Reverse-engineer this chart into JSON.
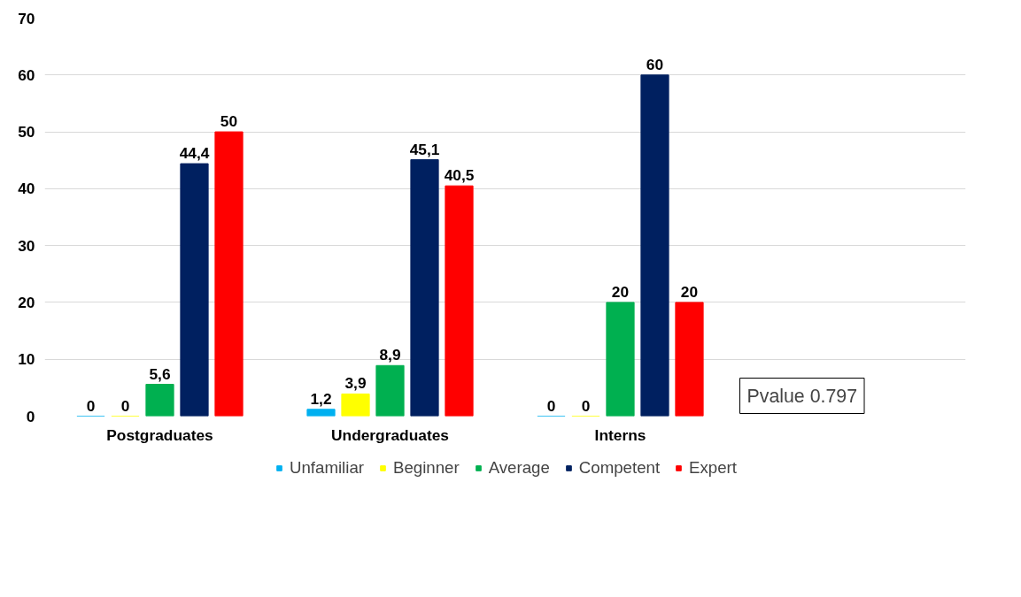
{
  "chart_data": {
    "type": "bar",
    "categories": [
      "Postgraduates",
      "Undergraduates",
      "Interns",
      null
    ],
    "series": [
      {
        "name": "Unfamiliar",
        "color": "#00b0f0",
        "values": [
          0,
          1.2,
          0,
          null
        ],
        "value_labels": [
          "0",
          "1,2",
          "0",
          null
        ]
      },
      {
        "name": "Beginner",
        "color": "#ffff00",
        "values": [
          0,
          3.9,
          0,
          null
        ],
        "value_labels": [
          "0",
          "3,9",
          "0",
          null
        ]
      },
      {
        "name": "Average",
        "color": "#00b050",
        "values": [
          5.6,
          8.9,
          20,
          null
        ],
        "value_labels": [
          "5,6",
          "8,9",
          "20",
          null
        ]
      },
      {
        "name": "Competent",
        "color": "#002060",
        "values": [
          44.4,
          45.1,
          60,
          null
        ],
        "value_labels": [
          "44,4",
          "45,1",
          "60",
          null
        ]
      },
      {
        "name": "Expert",
        "color": "#ff0000",
        "values": [
          50,
          40.5,
          20,
          null
        ],
        "value_labels": [
          "50",
          "40,5",
          "20",
          null
        ]
      }
    ],
    "ylim": [
      0,
      70
    ],
    "yticks": [
      0,
      10,
      20,
      30,
      40,
      50,
      60,
      70
    ],
    "grid": "y",
    "legend": "bottom",
    "annotations": [
      "Pvalue 0.797"
    ]
  }
}
